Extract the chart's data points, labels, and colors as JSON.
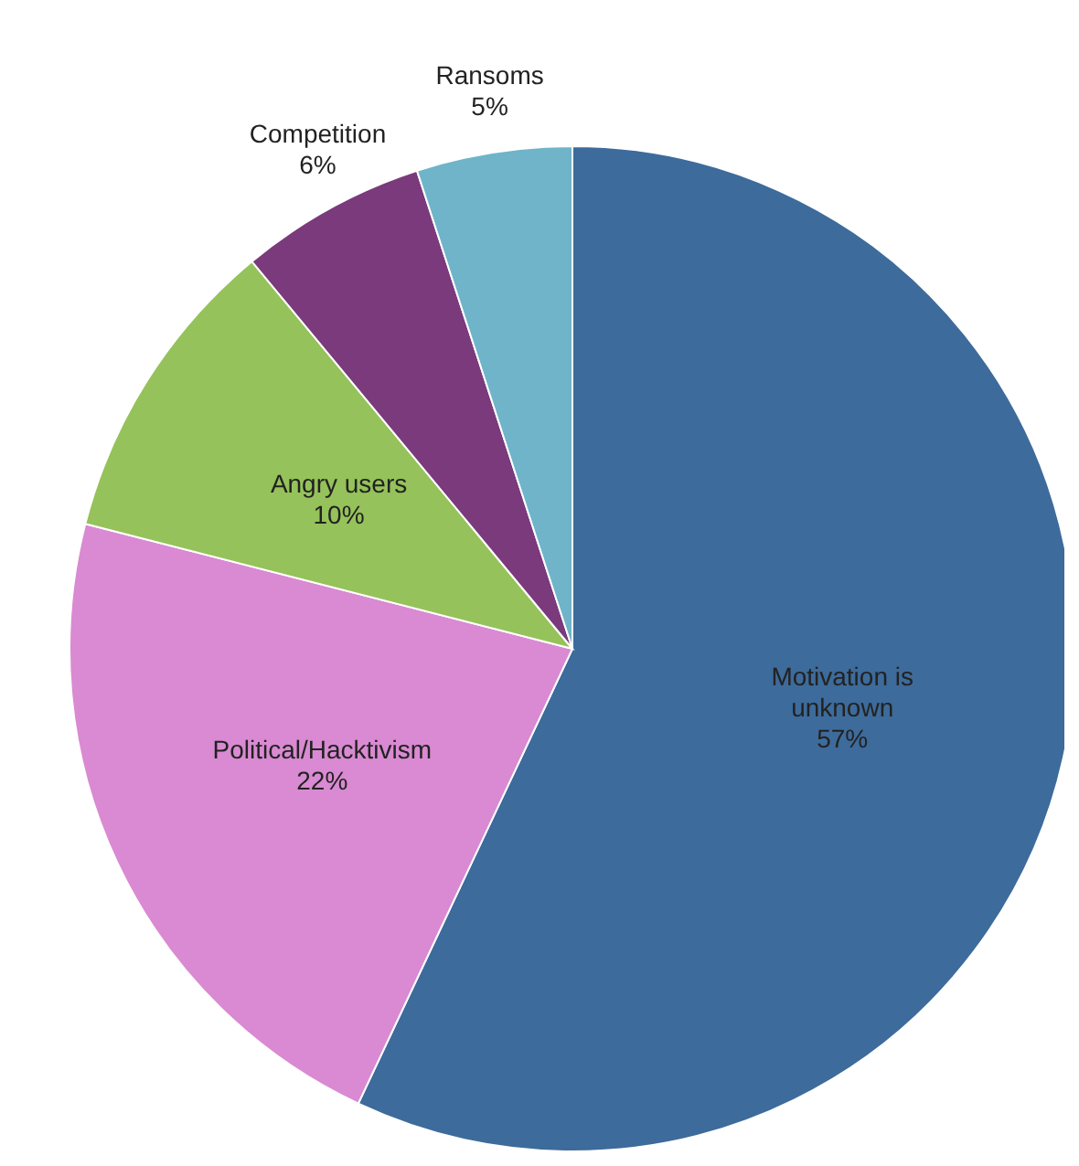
{
  "chart_data": {
    "type": "pie",
    "categories": [
      "Motivation is unknown",
      "Political/Hacktivism",
      "Angry users",
      "Competition",
      "Ransoms"
    ],
    "values": [
      57,
      22,
      10,
      6,
      5
    ],
    "value_labels": [
      "57%",
      "22%",
      "10%",
      "6%",
      "5%"
    ],
    "colors": [
      "#3d6b9b",
      "#d98ad2",
      "#95c25a",
      "#7a3a7c",
      "#6fb4c9"
    ]
  }
}
